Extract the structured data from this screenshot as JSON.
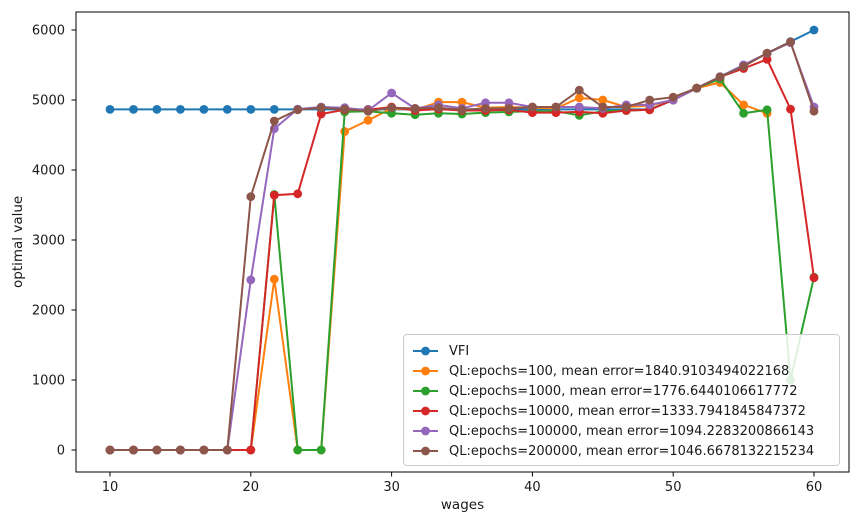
{
  "chart_data": {
    "type": "line",
    "title": "",
    "xlabel": "wages",
    "ylabel": "optimal value",
    "xlim": [
      7.5,
      62.5
    ],
    "ylim": [
      -300,
      6300
    ],
    "x_ticks": [
      10,
      20,
      30,
      40,
      50,
      60
    ],
    "y_ticks": [
      0,
      1000,
      2000,
      3000,
      4000,
      5000,
      6000
    ],
    "grid": false,
    "legend_position": "lower right",
    "marker": "circle",
    "x": [
      10,
      11.67,
      13.33,
      15,
      16.67,
      18.33,
      20,
      21.67,
      23.33,
      25,
      26.67,
      28.33,
      30,
      31.67,
      33.33,
      35,
      36.67,
      38.33,
      40,
      41.67,
      43.33,
      45,
      46.67,
      48.33,
      50,
      51.67,
      53.33,
      55,
      56.67,
      58.33,
      60
    ],
    "series": [
      {
        "name": "VFI",
        "color": "#1f77b4",
        "values": [
          4865,
          4865,
          4865,
          4865,
          4865,
          4865,
          4865,
          4865,
          4865,
          4865,
          4865,
          4865,
          4865,
          4865,
          4865,
          4865,
          4865,
          4865,
          4865,
          4865,
          4865,
          4865,
          4865,
          4865,
          5000,
          5167,
          5333,
          5500,
          5667,
          5833,
          6000
        ]
      },
      {
        "name": "QL:epochs=100, mean error=1840.9103494022168",
        "color": "#ff7f0e",
        "values": [
          0,
          0,
          0,
          0,
          0,
          0,
          0,
          2440,
          0,
          0,
          4550,
          4710,
          4880,
          4860,
          4970,
          4970,
          4890,
          4900,
          4890,
          4880,
          5030,
          5000,
          4900,
          4920,
          5000,
          5170,
          5250,
          4930,
          4810,
          null,
          null
        ]
      },
      {
        "name": "QL:epochs=1000, mean error=1776.6440106617772",
        "color": "#2ca02c",
        "values": [
          0,
          0,
          0,
          0,
          0,
          0,
          0,
          3650,
          0,
          0,
          4830,
          4840,
          4810,
          4790,
          4810,
          4800,
          4820,
          4830,
          4840,
          4840,
          4780,
          4840,
          4850,
          4860,
          5000,
          5170,
          5300,
          4810,
          4860,
          1000,
          2470
        ]
      },
      {
        "name": "QL:epochs=10000, mean error=1333.7941845847372",
        "color": "#d62728",
        "values": [
          0,
          0,
          0,
          0,
          0,
          0,
          0,
          3640,
          3660,
          4800,
          4860,
          4860,
          4900,
          4850,
          4870,
          4850,
          4850,
          4860,
          4820,
          4820,
          4830,
          4810,
          4850,
          4860,
          5000,
          5170,
          5330,
          5450,
          5580,
          4870,
          2460
        ]
      },
      {
        "name": "QL:epochs=100000, mean error=1094.2283200866143",
        "color": "#9467bd",
        "values": [
          0,
          0,
          0,
          0,
          0,
          0,
          2430,
          4590,
          4870,
          4900,
          4890,
          4850,
          5100,
          4880,
          4930,
          4880,
          4960,
          4960,
          4900,
          4900,
          4900,
          4880,
          4930,
          4930,
          5000,
          5170,
          5330,
          5500,
          5667,
          5820,
          4900
        ]
      },
      {
        "name": "QL:epochs=200000, mean error=1046.6678132215234",
        "color": "#8c564b",
        "values": [
          0,
          0,
          0,
          0,
          0,
          0,
          3620,
          4700,
          4860,
          4890,
          4870,
          4840,
          4890,
          4880,
          4890,
          4860,
          4880,
          4880,
          4900,
          4900,
          5140,
          4900,
          4900,
          5000,
          5040,
          5170,
          5330,
          5480,
          5670,
          5830,
          4840
        ]
      }
    ]
  }
}
